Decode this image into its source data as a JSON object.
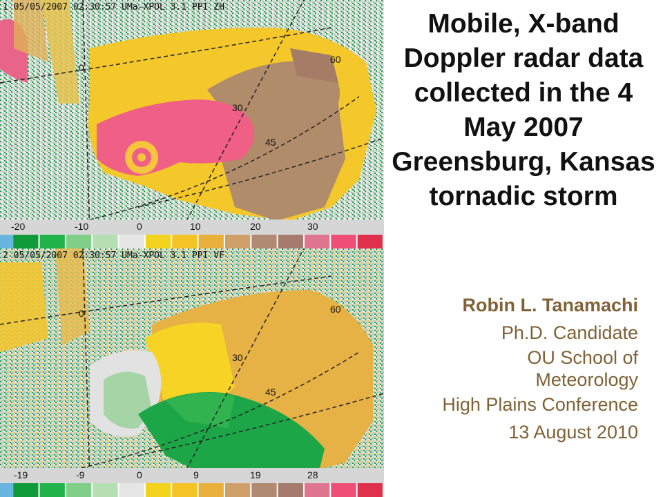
{
  "slide": {
    "title": "Mobile, X-band Doppler radar data collected in the 4 May 2007 Greensburg, Kansas tornadic storm",
    "author": "Robin L. Tanamachi",
    "lines": [
      "Ph.D. Candidate",
      "OU School of",
      "Meteorology",
      "High Plains Conference",
      "13 August 2010"
    ],
    "byline_color": "#7f6236"
  },
  "panels": [
    {
      "header": "1 05/05/2007 02:30:57 UMa-XPOL 3.1 PPI ZH",
      "x_ticks": [
        "-20",
        "-10",
        "0",
        "10",
        "20",
        "30"
      ],
      "range_labels": [
        "0",
        "30",
        "45",
        "60"
      ],
      "colorbar": [
        "#68b5e0",
        "#109a3a",
        "#22b24a",
        "#7fcf88",
        "#b5dfb3",
        "#e6e6e6",
        "#f2d320",
        "#f4c326",
        "#e9b13b",
        "#d0a06a",
        "#b08a73",
        "#a47b6d",
        "#e07590",
        "#ef4f77",
        "#e0304e"
      ]
    },
    {
      "header": "2 05/05/2007 02:30:57 UMa-XPOL 3.1 PPI VF",
      "x_ticks": [
        "-19",
        "-9",
        "0",
        "9",
        "19",
        "28"
      ],
      "range_labels": [
        "0",
        "30",
        "45",
        "60"
      ],
      "colorbar": [
        "#68b5e0",
        "#109a3a",
        "#22b24a",
        "#7fcf88",
        "#b5dfb3",
        "#e6e6e6",
        "#f2d320",
        "#f4c326",
        "#e9b13b",
        "#d0a06a",
        "#b08a73",
        "#a47b6d",
        "#e07590",
        "#ef4f77",
        "#e0304e"
      ]
    }
  ]
}
